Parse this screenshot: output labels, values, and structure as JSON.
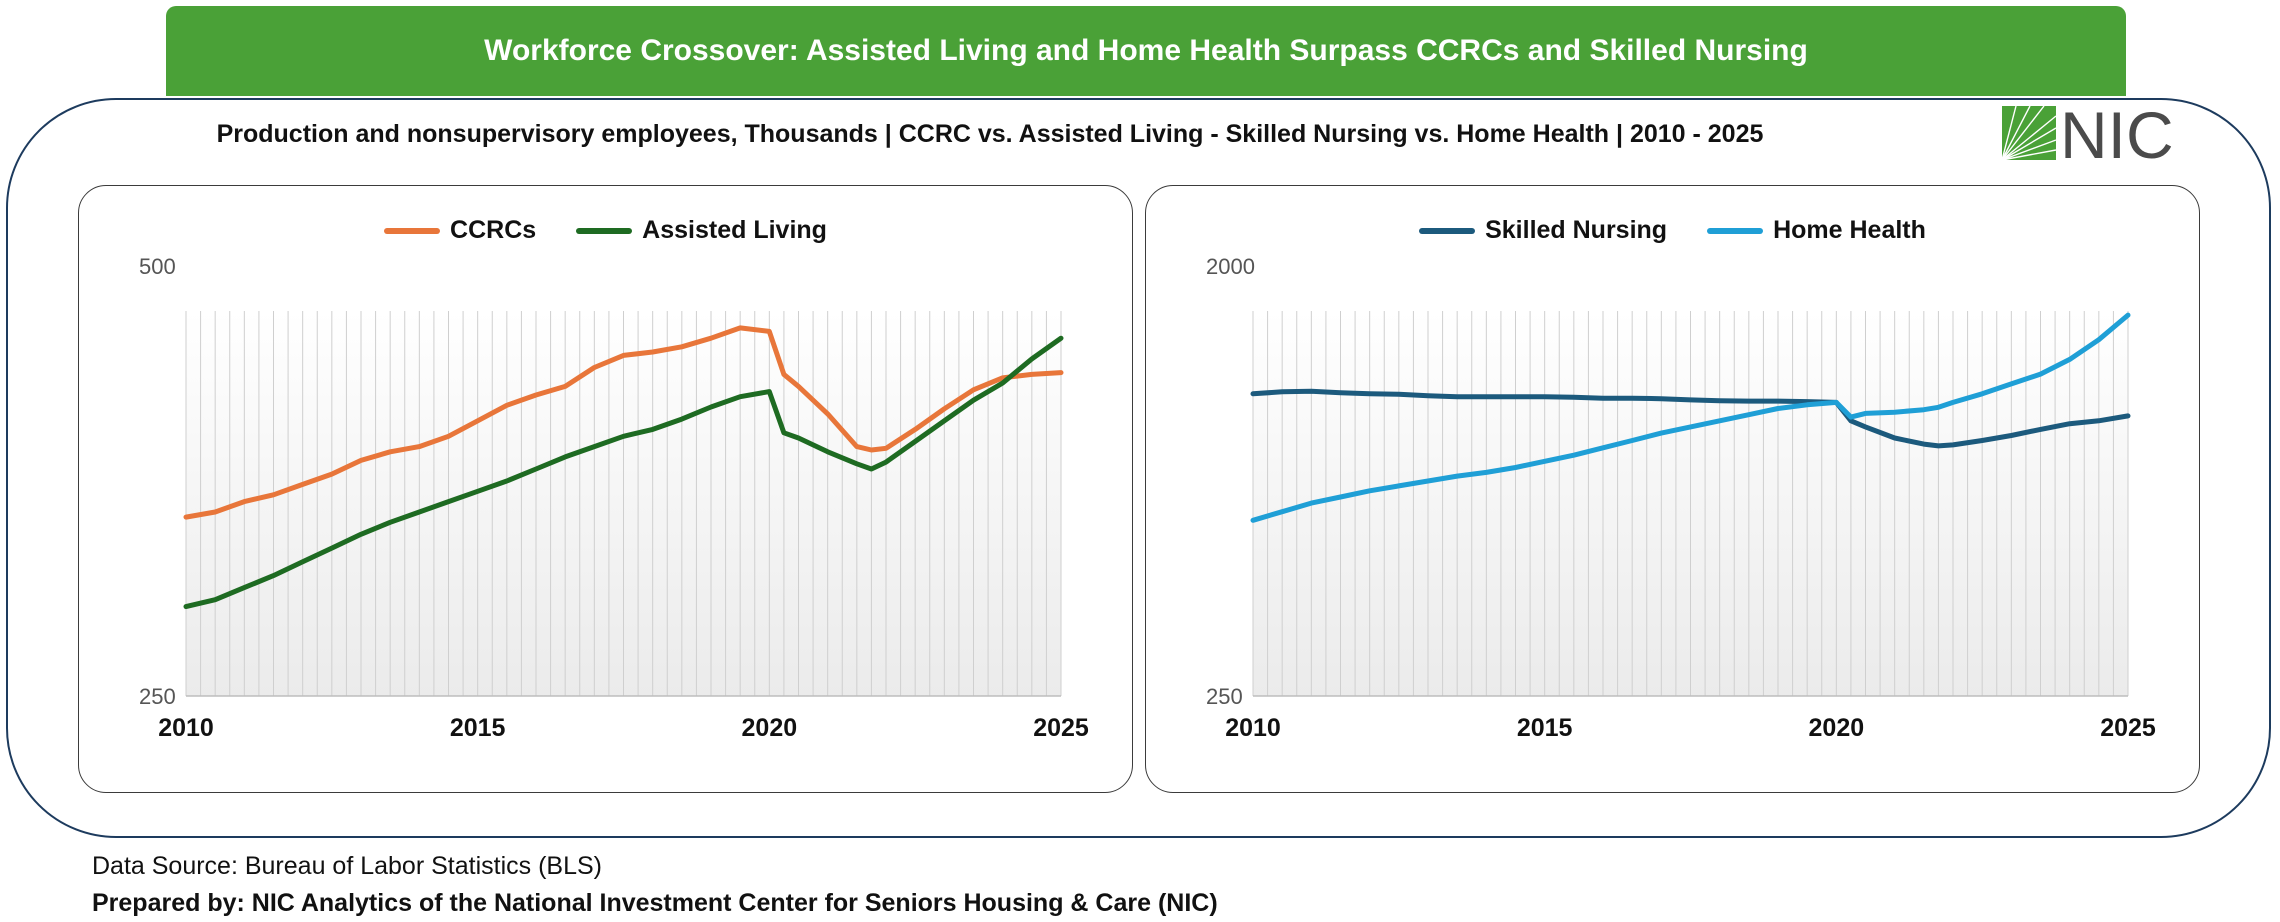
{
  "header": {
    "title": "Workforce Crossover: Assisted Living and Home Health Surpass CCRCs and Skilled Nursing",
    "subtitle": "Production and nonsupervisory employees, Thousands | CCRC vs. Assisted Living - Skilled Nursing vs. Home Health | 2010 - 2025"
  },
  "logo": {
    "text": "NIC",
    "icon": "nic-logo-icon",
    "color": "#4aa137"
  },
  "footer": {
    "source": "Data Source: Bureau of Labor Statistics (BLS)",
    "prepared_by": "Prepared by: NIC Analytics of the National Investment Center for Seniors Housing & Care (NIC)"
  },
  "colors": {
    "banner": "#4aa137",
    "ccrc": "#e8763a",
    "assisted_living": "#1e6b22",
    "skilled_nursing": "#1c5a7d",
    "home_health": "#1f9fd6"
  },
  "chart_data": [
    {
      "type": "line",
      "ylim": [
        250,
        500
      ],
      "yticks": [
        "250",
        "500"
      ],
      "xticks": [
        "2010",
        "2015",
        "2020",
        "2025"
      ],
      "x": [
        2010.0,
        2010.5,
        2011.0,
        2011.5,
        2012.0,
        2012.5,
        2013.0,
        2013.5,
        2014.0,
        2014.5,
        2015.0,
        2015.5,
        2016.0,
        2016.5,
        2017.0,
        2017.5,
        2018.0,
        2018.5,
        2019.0,
        2019.5,
        2020.0,
        2020.25,
        2020.5,
        2021.0,
        2021.5,
        2021.75,
        2022.0,
        2022.5,
        2023.0,
        2023.5,
        2024.0,
        2024.5,
        2025.0
      ],
      "series": [
        {
          "name": "CCRCs",
          "color": "#e8763a",
          "values": [
            354,
            357,
            363,
            367,
            373,
            379,
            387,
            392,
            395,
            401,
            410,
            419,
            425,
            430,
            441,
            448,
            450,
            453,
            458,
            464,
            462,
            437,
            430,
            414,
            395,
            393,
            394,
            405,
            417,
            428,
            435,
            437,
            438
          ]
        },
        {
          "name": "Assisted Living",
          "color": "#1e6b22",
          "values": [
            302,
            306,
            313,
            320,
            328,
            336,
            344,
            351,
            357,
            363,
            369,
            375,
            382,
            389,
            395,
            401,
            405,
            411,
            418,
            424,
            427,
            403,
            400,
            392,
            385,
            382,
            386,
            398,
            410,
            422,
            432,
            446,
            458
          ]
        }
      ]
    },
    {
      "type": "line",
      "ylim": [
        250,
        2000
      ],
      "yticks": [
        "250",
        "2000"
      ],
      "xticks": [
        "2010",
        "2015",
        "2020",
        "2025"
      ],
      "x": [
        2010.0,
        2010.5,
        2011.0,
        2011.5,
        2012.0,
        2012.5,
        2013.0,
        2013.5,
        2014.0,
        2014.5,
        2015.0,
        2015.5,
        2016.0,
        2016.5,
        2017.0,
        2017.5,
        2018.0,
        2018.5,
        2019.0,
        2019.5,
        2020.0,
        2020.25,
        2020.5,
        2021.0,
        2021.5,
        2021.75,
        2022.0,
        2022.5,
        2023.0,
        2023.5,
        2024.0,
        2024.5,
        2025.0
      ],
      "series": [
        {
          "name": "Skilled Nursing",
          "color": "#1c5a7d",
          "values": [
            1480,
            1488,
            1490,
            1484,
            1480,
            1478,
            1472,
            1468,
            1468,
            1468,
            1468,
            1466,
            1462,
            1462,
            1460,
            1455,
            1452,
            1450,
            1450,
            1448,
            1445,
            1370,
            1345,
            1300,
            1275,
            1268,
            1272,
            1290,
            1310,
            1335,
            1358,
            1370,
            1390
          ]
        },
        {
          "name": "Home Health",
          "color": "#1f9fd6",
          "values": [
            965,
            1000,
            1035,
            1060,
            1085,
            1105,
            1125,
            1145,
            1160,
            1180,
            1205,
            1230,
            1260,
            1290,
            1320,
            1345,
            1370,
            1395,
            1420,
            1435,
            1445,
            1385,
            1400,
            1405,
            1415,
            1425,
            1445,
            1480,
            1520,
            1560,
            1620,
            1700,
            1800
          ]
        }
      ]
    }
  ]
}
